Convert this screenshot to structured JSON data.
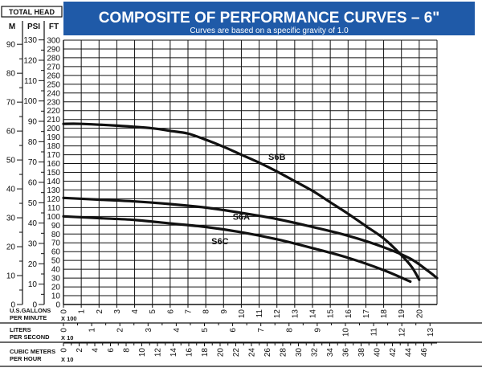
{
  "chart_data": {
    "type": "line",
    "title": "COMPOSITE OF PERFORMANCE CURVES – 6\"",
    "subtitle": "Curves are based on a specific gravity of 1.0",
    "total_head_label": "TOTAL HEAD",
    "y_axes": {
      "ft": {
        "label": "FT",
        "ticks": [
          0,
          10,
          20,
          30,
          40,
          50,
          60,
          70,
          80,
          90,
          100,
          110,
          120,
          130,
          140,
          150,
          160,
          170,
          180,
          190,
          200,
          210,
          220,
          230,
          240,
          250,
          260,
          270,
          280,
          290,
          300
        ],
        "ylim": [
          0,
          300
        ]
      },
      "psi": {
        "label": "PSI",
        "ticks": [
          0,
          10,
          20,
          30,
          40,
          50,
          60,
          70,
          80,
          90,
          100,
          110,
          120,
          130
        ]
      },
      "m": {
        "label": "M",
        "ticks": [
          0,
          10,
          20,
          30,
          40,
          50,
          60,
          70,
          80,
          90
        ]
      }
    },
    "x_axes": {
      "gpm": {
        "label_lines": [
          "U.S.GALLONS",
          "PER MINUTE"
        ],
        "multiplier": "X 100",
        "ticks": [
          0,
          1,
          2,
          3,
          4,
          5,
          6,
          7,
          8,
          9,
          10,
          11,
          12,
          13,
          14,
          15,
          16,
          17,
          18,
          19,
          20
        ],
        "xlim": [
          0,
          21
        ]
      },
      "lps": {
        "label_lines": [
          "LITERS",
          "PER SECOND"
        ],
        "multiplier": "X 10",
        "ticks": [
          0,
          1,
          2,
          3,
          4,
          5,
          6,
          7,
          8,
          9,
          10,
          11,
          12,
          13
        ]
      },
      "m3h": {
        "label_lines": [
          "CUBIC METERS",
          "PER HOUR"
        ],
        "multiplier": "X 10",
        "ticks": [
          0,
          2,
          4,
          6,
          8,
          10,
          12,
          14,
          16,
          18,
          20,
          22,
          24,
          26,
          28,
          30,
          32,
          34,
          36,
          38,
          40,
          42,
          44,
          46
        ]
      }
    },
    "grid": true,
    "series": [
      {
        "name": "S6B",
        "x": [
          0,
          1,
          3,
          5,
          6,
          7,
          8,
          9,
          10,
          11,
          12,
          13,
          14,
          15,
          16,
          17,
          18,
          19,
          19.6,
          20.0
        ],
        "y": [
          205,
          205,
          203,
          200,
          197,
          194,
          187,
          179,
          170,
          161,
          151,
          140,
          129,
          116,
          103,
          89,
          75,
          56,
          42,
          28
        ]
      },
      {
        "name": "S6A",
        "x": [
          0,
          2,
          4,
          6,
          8,
          10,
          12,
          14,
          16,
          18,
          19.5,
          20.5,
          21
        ],
        "y": [
          121,
          119,
          117,
          114,
          110,
          104,
          97,
          88,
          78,
          65,
          52,
          38,
          30
        ]
      },
      {
        "name": "S6C",
        "x": [
          0,
          2,
          4,
          6,
          8,
          10,
          12,
          14,
          16,
          18,
          19.5
        ],
        "y": [
          100,
          98,
          96,
          92,
          88,
          82,
          74,
          64,
          53,
          39,
          26
        ]
      }
    ]
  }
}
